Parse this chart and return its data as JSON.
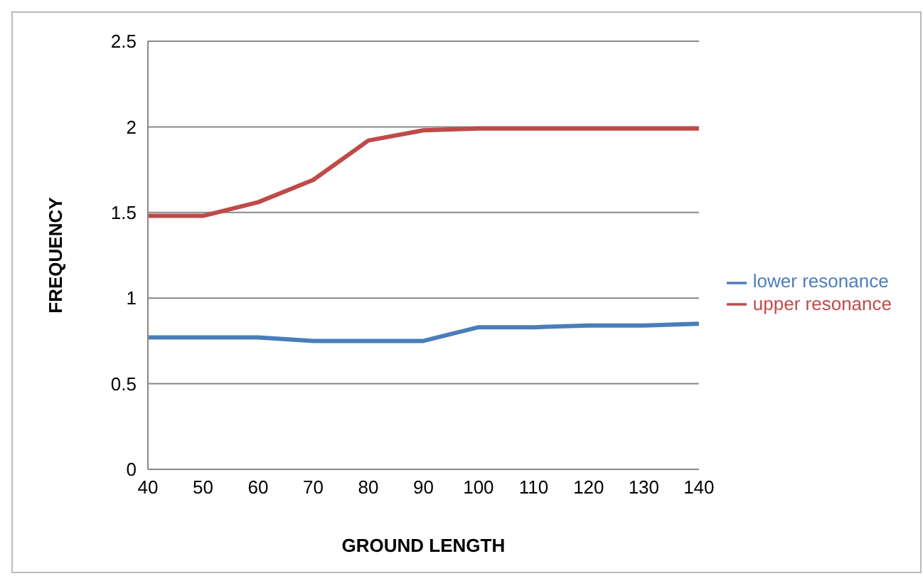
{
  "chart_data": {
    "type": "line",
    "xlabel": "GROUND LENGTH",
    "ylabel": "FREQUENCY",
    "categories": [
      "40",
      "50",
      "60",
      "70",
      "80",
      "90",
      "100",
      "110",
      "120",
      "130",
      "140"
    ],
    "series": [
      {
        "name": "lower resonance",
        "color": "#4a7ebb",
        "values": [
          0.77,
          0.77,
          0.77,
          0.75,
          0.75,
          0.75,
          0.83,
          0.83,
          0.84,
          0.84,
          0.85
        ]
      },
      {
        "name": "upper resonance",
        "color": "#be4b48",
        "values": [
          1.48,
          1.48,
          1.56,
          1.69,
          1.92,
          1.98,
          1.99,
          1.99,
          1.99,
          1.99,
          1.99
        ]
      }
    ],
    "ylim": [
      0,
      2.5
    ],
    "yticks": [
      0,
      0.5,
      1,
      1.5,
      2,
      2.5
    ],
    "grid": "y",
    "legend": "right",
    "marker": "none",
    "line_style": "solid"
  }
}
